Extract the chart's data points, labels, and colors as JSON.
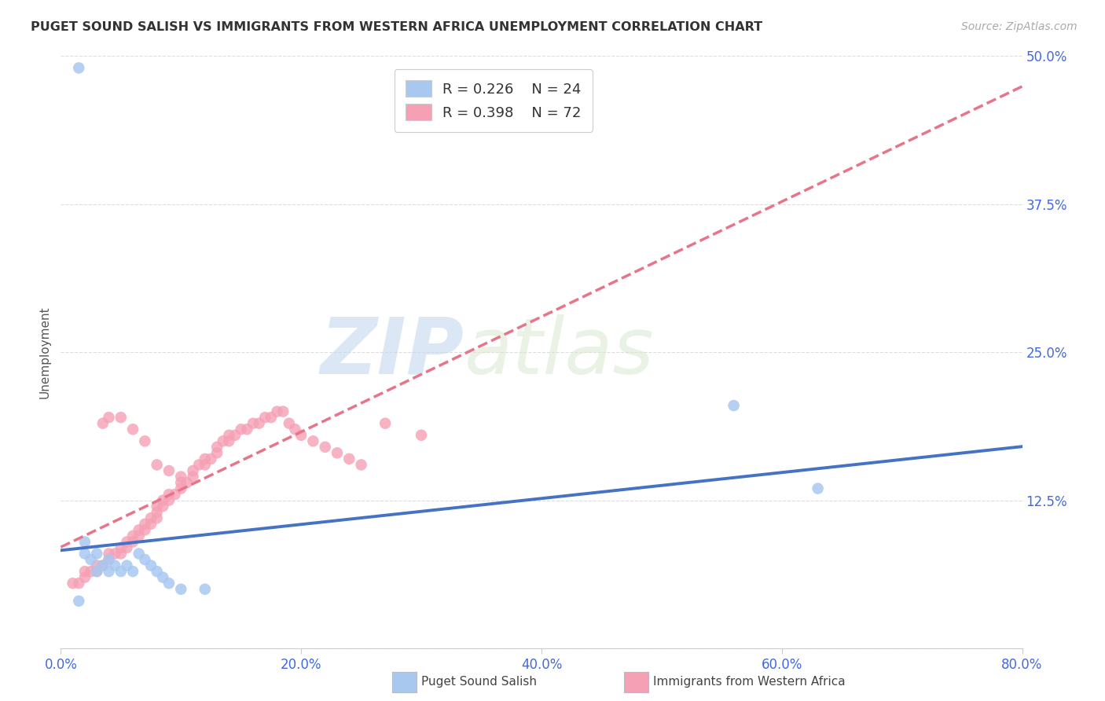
{
  "title": "PUGET SOUND SALISH VS IMMIGRANTS FROM WESTERN AFRICA UNEMPLOYMENT CORRELATION CHART",
  "source": "Source: ZipAtlas.com",
  "ylabel": "Unemployment",
  "xlim": [
    0.0,
    0.8
  ],
  "ylim": [
    0.0,
    0.5
  ],
  "xticks": [
    0.0,
    0.2,
    0.4,
    0.6,
    0.8
  ],
  "xtick_labels": [
    "0.0%",
    "20.0%",
    "40.0%",
    "60.0%",
    "80.0%"
  ],
  "yticks": [
    0.0,
    0.125,
    0.25,
    0.375,
    0.5
  ],
  "ytick_labels": [
    "",
    "12.5%",
    "25.0%",
    "37.5%",
    "50.0%"
  ],
  "blue_R": 0.226,
  "blue_N": 24,
  "pink_R": 0.398,
  "pink_N": 72,
  "blue_color": "#A8C8F0",
  "pink_color": "#F5A0B5",
  "blue_line_color": "#4472C4",
  "pink_line_color": "#E8748A",
  "legend_label_blue": "Puget Sound Salish",
  "legend_label_pink": "Immigrants from Western Africa",
  "watermark_zip": "ZIP",
  "watermark_atlas": "atlas",
  "background_color": "#FFFFFF",
  "grid_color": "#DDDDDD",
  "blue_scatter_x": [
    0.015,
    0.02,
    0.02,
    0.025,
    0.03,
    0.03,
    0.035,
    0.04,
    0.04,
    0.045,
    0.05,
    0.055,
    0.06,
    0.065,
    0.07,
    0.075,
    0.08,
    0.085,
    0.09,
    0.1,
    0.12,
    0.015,
    0.56,
    0.63
  ],
  "blue_scatter_y": [
    0.49,
    0.08,
    0.09,
    0.075,
    0.065,
    0.08,
    0.07,
    0.075,
    0.065,
    0.07,
    0.065,
    0.07,
    0.065,
    0.08,
    0.075,
    0.07,
    0.065,
    0.06,
    0.055,
    0.05,
    0.05,
    0.04,
    0.205,
    0.135
  ],
  "pink_scatter_x": [
    0.01,
    0.015,
    0.02,
    0.02,
    0.025,
    0.03,
    0.03,
    0.035,
    0.04,
    0.04,
    0.045,
    0.05,
    0.05,
    0.055,
    0.055,
    0.06,
    0.06,
    0.065,
    0.065,
    0.07,
    0.07,
    0.075,
    0.075,
    0.08,
    0.08,
    0.08,
    0.085,
    0.085,
    0.09,
    0.09,
    0.095,
    0.1,
    0.1,
    0.105,
    0.11,
    0.11,
    0.115,
    0.12,
    0.12,
    0.125,
    0.13,
    0.13,
    0.135,
    0.14,
    0.14,
    0.145,
    0.15,
    0.155,
    0.16,
    0.165,
    0.17,
    0.175,
    0.18,
    0.185,
    0.19,
    0.195,
    0.2,
    0.21,
    0.22,
    0.23,
    0.24,
    0.25,
    0.27,
    0.3,
    0.035,
    0.04,
    0.05,
    0.06,
    0.07,
    0.08,
    0.09,
    0.1
  ],
  "pink_scatter_y": [
    0.055,
    0.055,
    0.06,
    0.065,
    0.065,
    0.065,
    0.07,
    0.07,
    0.075,
    0.08,
    0.08,
    0.08,
    0.085,
    0.085,
    0.09,
    0.09,
    0.095,
    0.095,
    0.1,
    0.1,
    0.105,
    0.105,
    0.11,
    0.11,
    0.115,
    0.12,
    0.12,
    0.125,
    0.125,
    0.13,
    0.13,
    0.135,
    0.14,
    0.14,
    0.145,
    0.15,
    0.155,
    0.155,
    0.16,
    0.16,
    0.165,
    0.17,
    0.175,
    0.175,
    0.18,
    0.18,
    0.185,
    0.185,
    0.19,
    0.19,
    0.195,
    0.195,
    0.2,
    0.2,
    0.19,
    0.185,
    0.18,
    0.175,
    0.17,
    0.165,
    0.16,
    0.155,
    0.19,
    0.18,
    0.19,
    0.195,
    0.195,
    0.185,
    0.175,
    0.155,
    0.15,
    0.145
  ]
}
